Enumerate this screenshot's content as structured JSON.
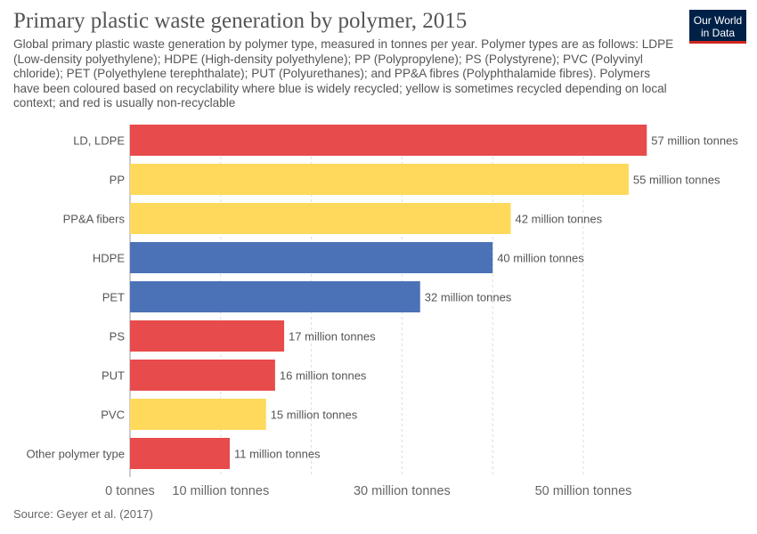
{
  "header": {
    "title": "Primary plastic waste generation by polymer, 2015",
    "subtitle": "Global primary plastic waste generation by polymer type, measured in tonnes per year. Polymer types are as follows: LDPE (Low-density polyethylene); HDPE (High-density polyethylene); PP (Polypropylene); PS (Polystyrene); PVC (Polyvinyl chloride); PET (Polyethylene terephthalate); PUT (Polyurethanes); and PP&A fibres (Polyphthalamide fibres). Polymers have been coloured based on recyclability where blue is widely recycled; yellow is sometimes recycled depending on local context; and red is usually non-recyclable"
  },
  "logo": {
    "line1": "Our World",
    "line2": "in Data"
  },
  "footer": {
    "source": "Source: Geyer et al. (2017)"
  },
  "colors": {
    "red": "#e84b4b",
    "yellow": "#fed95b",
    "blue": "#4b72b7"
  },
  "chart_data": {
    "type": "bar",
    "orientation": "horizontal",
    "categories": [
      "LD, LDPE",
      "PP",
      "PP&A fibers",
      "HDPE",
      "PET",
      "PS",
      "PUT",
      "PVC",
      "Other polymer type"
    ],
    "values": [
      57,
      55,
      42,
      40,
      32,
      17,
      16,
      15,
      11
    ],
    "value_labels": [
      "57 million tonnes",
      "55 million tonnes",
      "42 million tonnes",
      "40 million tonnes",
      "32 million tonnes",
      "17 million tonnes",
      "16 million tonnes",
      "15 million tonnes",
      "11 million tonnes"
    ],
    "bar_colors": [
      "#e84b4b",
      "#fed95b",
      "#fed95b",
      "#4b72b7",
      "#4b72b7",
      "#e84b4b",
      "#e84b4b",
      "#fed95b",
      "#e84b4b"
    ],
    "x_ticks": [
      0,
      10,
      30,
      50
    ],
    "x_tick_labels": [
      "0 tonnes",
      "10 million tonnes",
      "30 million tonnes",
      "50 million tonnes"
    ],
    "gridlines_at": [
      0,
      10,
      20,
      30,
      40,
      50
    ],
    "xlim": [
      0,
      57
    ],
    "grid": true,
    "xlabel": "",
    "ylabel": ""
  }
}
